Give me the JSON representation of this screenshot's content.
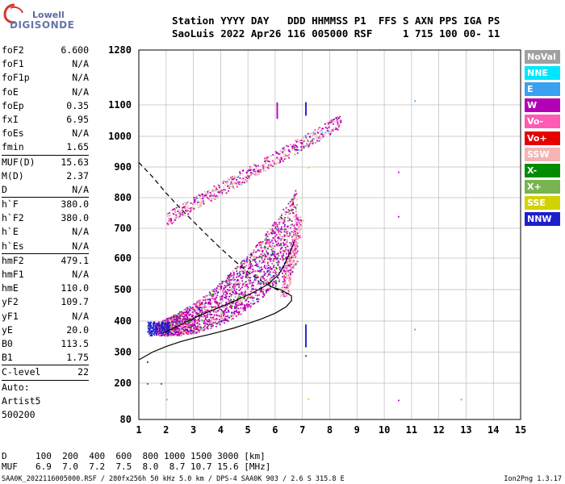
{
  "logo": {
    "top": "Lowell",
    "bottom": "DIGISONDE"
  },
  "header": {
    "line1": "Station YYYY DAY   DDD HHMMSS P1  FFS S AXN PPS IGA PS",
    "line2": "SaoLuis 2022 Apr26 116 005000 RSF     1 715 100 00- 11"
  },
  "params": [
    {
      "label": "foF2",
      "value": "6.600"
    },
    {
      "label": "foF1",
      "value": "N/A"
    },
    {
      "label": "foF1p",
      "value": "N/A"
    },
    {
      "label": "foE",
      "value": "N/A"
    },
    {
      "label": "foEp",
      "value": "0.35"
    },
    {
      "label": "fxI",
      "value": "6.95"
    },
    {
      "label": "foEs",
      "value": "N/A"
    },
    {
      "label": "fmin",
      "value": "1.65"
    },
    {
      "sep": true
    },
    {
      "label": "MUF(D)",
      "value": "15.63"
    },
    {
      "label": "M(D)",
      "value": "2.37"
    },
    {
      "label": "D",
      "value": "N/A"
    },
    {
      "sep": true
    },
    {
      "label": "h`F",
      "value": "380.0"
    },
    {
      "label": "h`F2",
      "value": "380.0"
    },
    {
      "label": "h`E",
      "value": "N/A"
    },
    {
      "label": "h`Es",
      "value": "N/A"
    },
    {
      "sep": true
    },
    {
      "label": "hmF2",
      "value": "479.1"
    },
    {
      "label": "hmF1",
      "value": "N/A"
    },
    {
      "label": "hmE",
      "value": "110.0"
    },
    {
      "label": "yF2",
      "value": "109.7"
    },
    {
      "label": "yF1",
      "value": "N/A"
    },
    {
      "label": "yE",
      "value": "20.0"
    },
    {
      "label": "B0",
      "value": "113.5"
    },
    {
      "label": "B1",
      "value": "1.75"
    },
    {
      "sep": true
    },
    {
      "label": "C-level",
      "value": "22"
    },
    {
      "sep": true
    },
    {
      "label": "Auto:",
      "value": ""
    },
    {
      "label": "Artist5",
      "value": ""
    },
    {
      "label": "500200",
      "value": ""
    }
  ],
  "legend": [
    {
      "label": "NoVal",
      "color": "#a0a0a0"
    },
    {
      "label": "NNE",
      "color": "#00e6ff"
    },
    {
      "label": "E",
      "color": "#3aa0f0"
    },
    {
      "label": "W",
      "color": "#b400b4"
    },
    {
      "label": "Vo-",
      "color": "#ff5ab4"
    },
    {
      "label": "Vo+",
      "color": "#e60000"
    },
    {
      "label": "SSW",
      "color": "#f5b4b4"
    },
    {
      "label": "X-",
      "color": "#008c00"
    },
    {
      "label": "X+",
      "color": "#78b450"
    },
    {
      "label": "SSE",
      "color": "#d2d200"
    },
    {
      "label": "NNW",
      "color": "#1e1ecc"
    }
  ],
  "footer": {
    "d_label": "D",
    "d_values": "100  200  400  600  800 1000 1500 3000 [km]",
    "muf_label": "MUF",
    "muf_values": "6.9  7.0  7.2  7.5  8.0  8.7 10.7 15.6 [MHz]",
    "file_info": "SAA0K_2022116005000.RSF / 280fx256h 50 kHz 5.0 km / DPS-4 SAA0K 903 / 2.6 S 315.8 E",
    "version": "Ion2Png 1.3.17"
  },
  "chart_data": {
    "type": "scatter",
    "x_ticks": [
      "1",
      "2",
      "3",
      "4",
      "5",
      "6",
      "7",
      "8",
      "9",
      "10",
      "11",
      "12",
      "13",
      "14",
      "15"
    ],
    "y_ticks": [
      "80",
      "200",
      "300",
      "400",
      "500",
      "600",
      "700",
      "800",
      "900",
      "1000",
      "1100",
      "1280"
    ],
    "xlim": [
      1,
      15
    ],
    "ylim": [
      80,
      1280
    ],
    "grid": true,
    "legend_position": "right",
    "series": [
      {
        "name": "profile",
        "style": "solid",
        "points": [
          [
            1.0,
            275
          ],
          [
            1.5,
            300
          ],
          [
            2.0,
            318
          ],
          [
            2.5,
            333
          ],
          [
            3.0,
            345
          ],
          [
            3.5,
            355
          ],
          [
            4.0,
            366
          ],
          [
            4.5,
            378
          ],
          [
            5.0,
            392
          ],
          [
            5.5,
            407
          ],
          [
            6.0,
            425
          ],
          [
            6.4,
            445
          ],
          [
            6.6,
            465
          ],
          [
            6.6,
            480
          ],
          [
            6.2,
            500
          ],
          [
            5.8,
            510
          ]
        ]
      },
      {
        "name": "F2 trace",
        "style": "solid",
        "points": [
          [
            1.9,
            362
          ],
          [
            2.3,
            378
          ],
          [
            2.8,
            400
          ],
          [
            3.3,
            420
          ],
          [
            3.8,
            438
          ],
          [
            4.3,
            456
          ],
          [
            4.8,
            475
          ],
          [
            5.3,
            495
          ],
          [
            5.7,
            515
          ],
          [
            6.1,
            545
          ],
          [
            6.3,
            572
          ],
          [
            6.5,
            610
          ],
          [
            6.7,
            655
          ]
        ]
      },
      {
        "name": "MUF curve",
        "style": "dashed",
        "points": [
          [
            1.0,
            915
          ],
          [
            1.5,
            868
          ],
          [
            2.0,
            815
          ],
          [
            2.5,
            767
          ],
          [
            3.0,
            722
          ],
          [
            3.5,
            677
          ],
          [
            4.0,
            633
          ],
          [
            4.5,
            592
          ],
          [
            5.0,
            556
          ],
          [
            5.5,
            527
          ],
          [
            6.0,
            503
          ],
          [
            6.3,
            490
          ]
        ]
      }
    ]
  }
}
